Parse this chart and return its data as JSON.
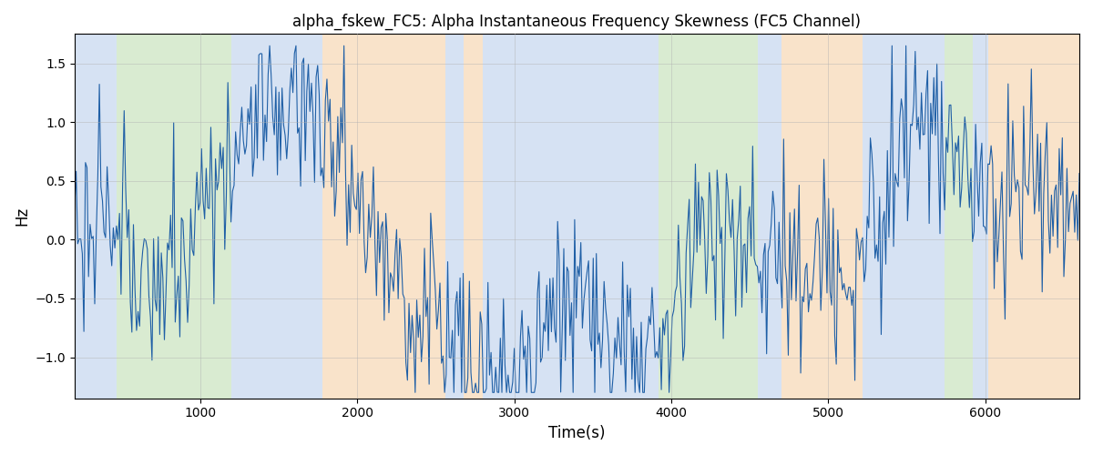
{
  "title": "alpha_fskew_FC5: Alpha Instantaneous Frequency Skewness (FC5 Channel)",
  "xlabel": "Time(s)",
  "ylabel": "Hz",
  "xlim": [
    200,
    6600
  ],
  "ylim": [
    -1.35,
    1.75
  ],
  "line_color": "#1f5fa6",
  "line_width": 0.8,
  "bg_bands": [
    {
      "xmin": 200,
      "xmax": 470,
      "color": "#aec6e8",
      "alpha": 0.5
    },
    {
      "xmin": 470,
      "xmax": 1200,
      "color": "#b5d9a4",
      "alpha": 0.5
    },
    {
      "xmin": 1200,
      "xmax": 1780,
      "color": "#aec6e8",
      "alpha": 0.5
    },
    {
      "xmin": 1780,
      "xmax": 2560,
      "color": "#f5c897",
      "alpha": 0.5
    },
    {
      "xmin": 2560,
      "xmax": 2680,
      "color": "#aec6e8",
      "alpha": 0.5
    },
    {
      "xmin": 2680,
      "xmax": 2800,
      "color": "#f5c897",
      "alpha": 0.5
    },
    {
      "xmin": 2800,
      "xmax": 3720,
      "color": "#aec6e8",
      "alpha": 0.5
    },
    {
      "xmin": 3720,
      "xmax": 3830,
      "color": "#aec6e8",
      "alpha": 0.5
    },
    {
      "xmin": 3830,
      "xmax": 3920,
      "color": "#aec6e8",
      "alpha": 0.5
    },
    {
      "xmin": 3920,
      "xmax": 4080,
      "color": "#b5d9a4",
      "alpha": 0.5
    },
    {
      "xmin": 4080,
      "xmax": 4550,
      "color": "#b5d9a4",
      "alpha": 0.5
    },
    {
      "xmin": 4550,
      "xmax": 4700,
      "color": "#aec6e8",
      "alpha": 0.5
    },
    {
      "xmin": 4700,
      "xmax": 5220,
      "color": "#f5c897",
      "alpha": 0.5
    },
    {
      "xmin": 5220,
      "xmax": 5740,
      "color": "#aec6e8",
      "alpha": 0.5
    },
    {
      "xmin": 5740,
      "xmax": 5920,
      "color": "#b5d9a4",
      "alpha": 0.5
    },
    {
      "xmin": 5920,
      "xmax": 6020,
      "color": "#aec6e8",
      "alpha": 0.5
    },
    {
      "xmin": 6020,
      "xmax": 6600,
      "color": "#f5c897",
      "alpha": 0.5
    }
  ],
  "yticks": [
    -1.0,
    -0.5,
    0.0,
    0.5,
    1.0,
    1.5
  ],
  "xticks": [
    1000,
    2000,
    3000,
    4000,
    5000,
    6000
  ],
  "grid_color": "#b0b0b0",
  "grid_alpha": 0.5,
  "grid_linewidth": 0.6,
  "seed": 42,
  "n_points": 650
}
